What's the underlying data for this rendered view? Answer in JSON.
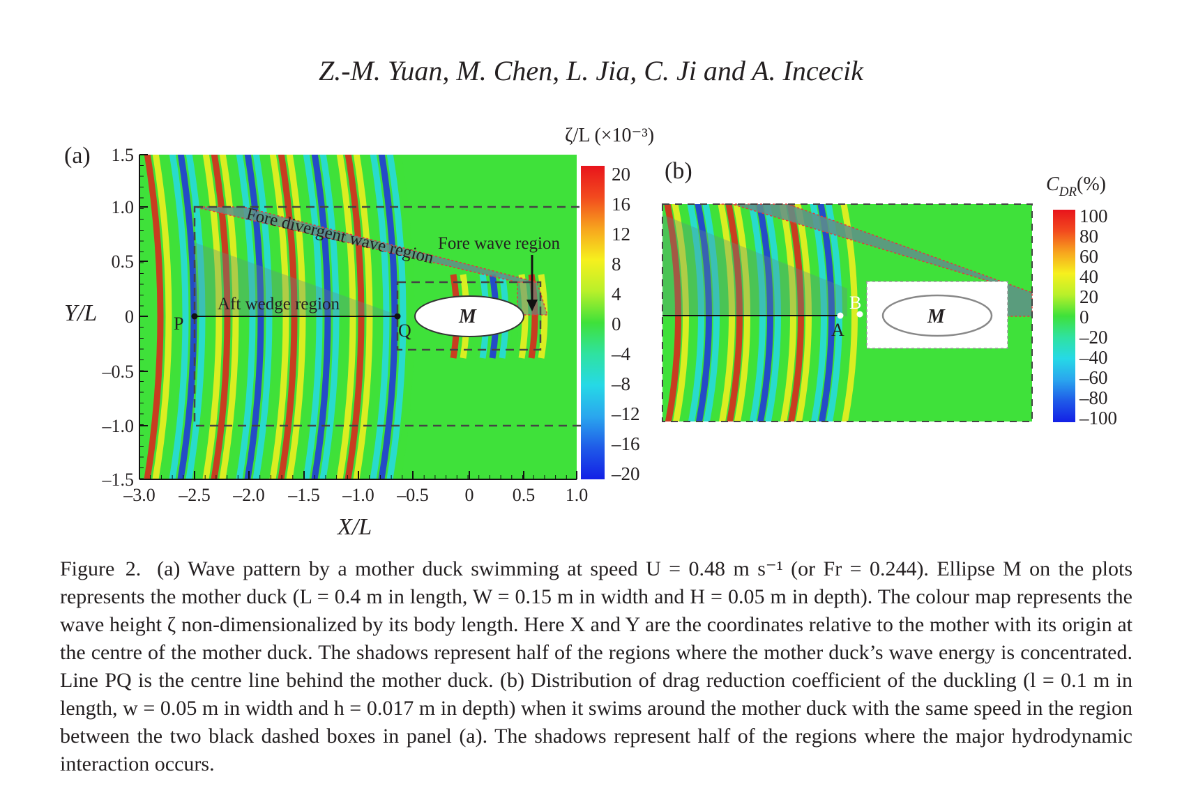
{
  "header": "Z.-M. Yuan, M. Chen, L. Jia, C. Ji and A. Incecik",
  "panel_a": {
    "label": "(a)",
    "ylabel": "Y/L",
    "xlabel": "X/L",
    "yticks": [
      "1.5",
      "1.0",
      "0.5",
      "0",
      "–0.5",
      "–1.0",
      "–1.5"
    ],
    "xticks": [
      "–3.0",
      "–2.5",
      "–2.0",
      "–1.5",
      "–1.0",
      "–0.5",
      "0",
      "0.5",
      "1.0"
    ],
    "annotations": {
      "fore_divergent": "Fore divergent wave region",
      "fore_wave": "Fore wave region",
      "aft_wedge": "Aft wedge region",
      "p": "P",
      "q": "Q",
      "m": "M"
    },
    "colorbar": {
      "title": "ζ/L (×10⁻³)",
      "ticks": [
        "20",
        "16",
        "12",
        "8",
        "4",
        "0",
        "–4",
        "–8",
        "–12",
        "–16",
        "–20"
      ]
    }
  },
  "panel_b": {
    "label": "(b)",
    "annotations": {
      "a": "A",
      "b": "B",
      "m": "M"
    },
    "colorbar": {
      "title": "C",
      "title_sub": "DR",
      "title_suffix": "(%)",
      "ticks": [
        "100",
        "80",
        "60",
        "40",
        "20",
        "0",
        "–20",
        "–40",
        "–60",
        "–80",
        "–100"
      ]
    }
  },
  "colors": {
    "field_green": "#3fe13a",
    "shadow": "#5f8f8a",
    "crest_red": "#e0201c",
    "trough_blue": "#2030e0",
    "shadow_edge": "#e33a3a"
  },
  "caption": {
    "lead": "Figure 2.",
    "text": "(a) Wave pattern by a mother duck swimming at speed U = 0.48 m s⁻¹ (or Fr = 0.244). Ellipse M on the plots represents the mother duck (L = 0.4 m in length, W = 0.15 m in width and H = 0.05 m in depth). The colour map represents the wave height ζ non-dimensionalized by its body length. Here X and Y are the coordinates relative to the mother with its origin at the centre of the mother duck. The shadows represent half of the regions where the mother duck’s wave energy is concentrated. Line PQ is the centre line behind the mother duck. (b) Distribution of drag reduction coefficient of the duckling (l = 0.1 m in length, w = 0.05 m in width and h = 0.017 m in depth) when it swims around the mother duck with the same speed in the region between the two black dashed boxes in panel (a). The shadows represent half of the regions where the major hydrodynamic interaction occurs."
  }
}
